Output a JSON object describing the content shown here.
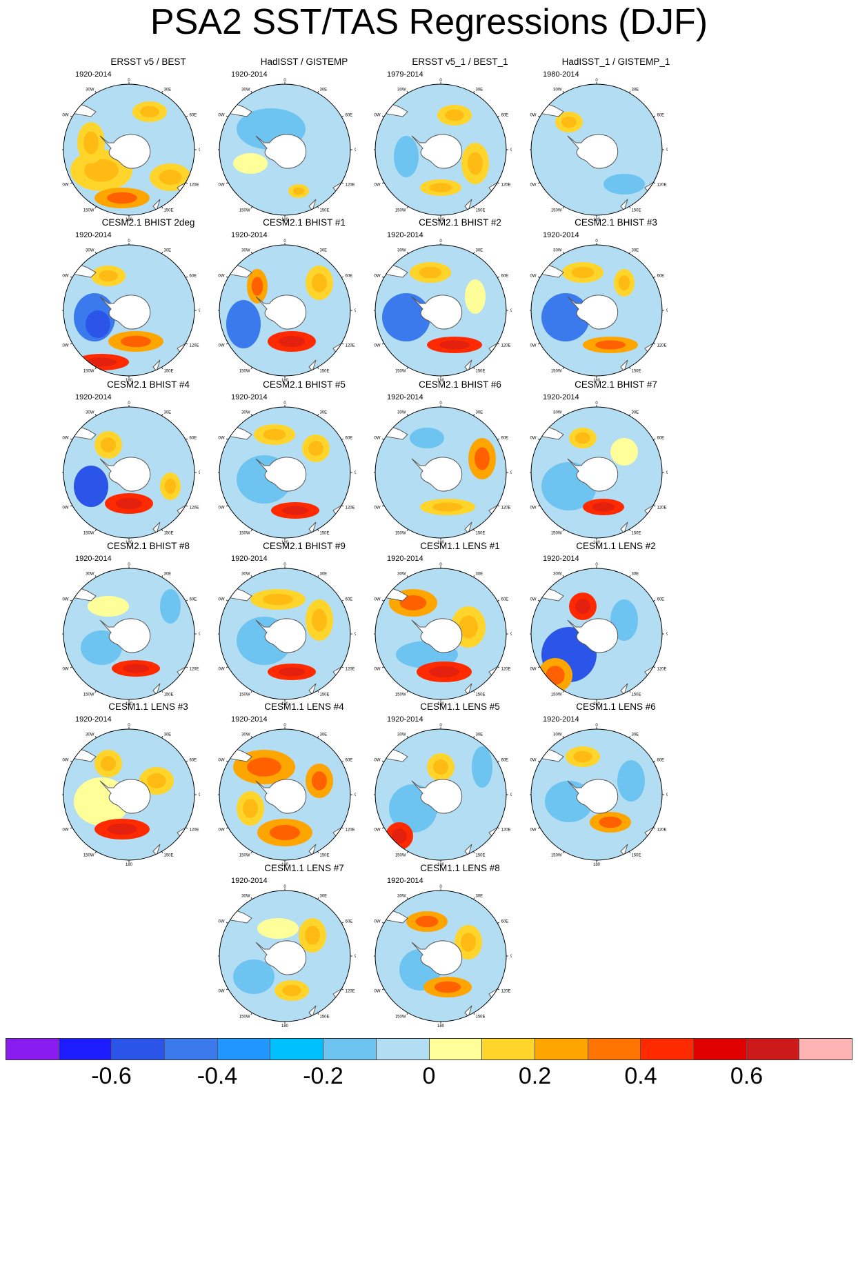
{
  "title": "PSA2 SST/TAS Regressions (DJF)",
  "panels": [
    {
      "title": "ERSST v5 / BEST",
      "period": "1920-2014"
    },
    {
      "title": "HadISST / GISTEMP",
      "period": "1920-2014"
    },
    {
      "title": "ERSST v5_1 / BEST_1",
      "period": "1979-2014"
    },
    {
      "title": "HadISST_1 / GISTEMP_1",
      "period": "1980-2014"
    },
    {
      "title": "CESM2.1 BHIST 2deg",
      "period": "1920-2014"
    },
    {
      "title": "CESM2.1 BHIST #1",
      "period": "1920-2014"
    },
    {
      "title": "CESM2.1 BHIST #2",
      "period": "1920-2014"
    },
    {
      "title": "CESM2.1 BHIST #3",
      "period": "1920-2014"
    },
    {
      "title": "CESM2.1 BHIST #4",
      "period": "1920-2014"
    },
    {
      "title": "CESM2.1 BHIST #5",
      "period": "1920-2014"
    },
    {
      "title": "CESM2.1 BHIST #6",
      "period": "1920-2014"
    },
    {
      "title": "CESM2.1 BHIST #7",
      "period": "1920-2014"
    },
    {
      "title": "CESM2.1 BHIST #8",
      "period": "1920-2014"
    },
    {
      "title": "CESM2.1 BHIST #9",
      "period": "1920-2014"
    },
    {
      "title": "CESM1.1 LENS #1",
      "period": "1920-2014"
    },
    {
      "title": "CESM1.1 LENS #2",
      "period": "1920-2014"
    },
    {
      "title": "CESM1.1 LENS #3",
      "period": "1920-2014"
    },
    {
      "title": "CESM1.1 LENS #4",
      "period": "1920-2014"
    },
    {
      "title": "CESM1.1 LENS #5",
      "period": "1920-2014"
    },
    {
      "title": "CESM1.1 LENS #6",
      "period": "1920-2014"
    },
    {
      "title": "CESM1.1 LENS #7",
      "period": "1920-2014"
    },
    {
      "title": "CESM1.1 LENS #8",
      "period": "1920-2014"
    }
  ],
  "map_lon_labels": [
    "0",
    "30E",
    "60E",
    "90E",
    "120E",
    "150E",
    "180",
    "150W",
    "120W",
    "90W",
    "60W",
    "30W"
  ],
  "colorbar": {
    "colors": [
      "#8a1cf0",
      "#1c1cff",
      "#2b55e8",
      "#3a7aed",
      "#2196ff",
      "#00bfff",
      "#6ec4f0",
      "#b3ddf2",
      "#ffff99",
      "#ffd52b",
      "#ffa500",
      "#ff7300",
      "#ff2a00",
      "#e00000",
      "#cc1a1a",
      "#ffb3b3"
    ],
    "labels": [
      "-0.6",
      "-0.4",
      "-0.2",
      "0",
      "0.2",
      "0.4",
      "0.6"
    ]
  },
  "palette": {
    "lightblue": "#b3ddf2",
    "blue": "#6ec4f0",
    "darkblue": "#3a7aed",
    "deepblue": "#2b55e8",
    "yellow": "#ffff99",
    "gold": "#ffd52b",
    "orange": "#ffa500",
    "red": "#ff2a00",
    "land": "#ffffff"
  }
}
